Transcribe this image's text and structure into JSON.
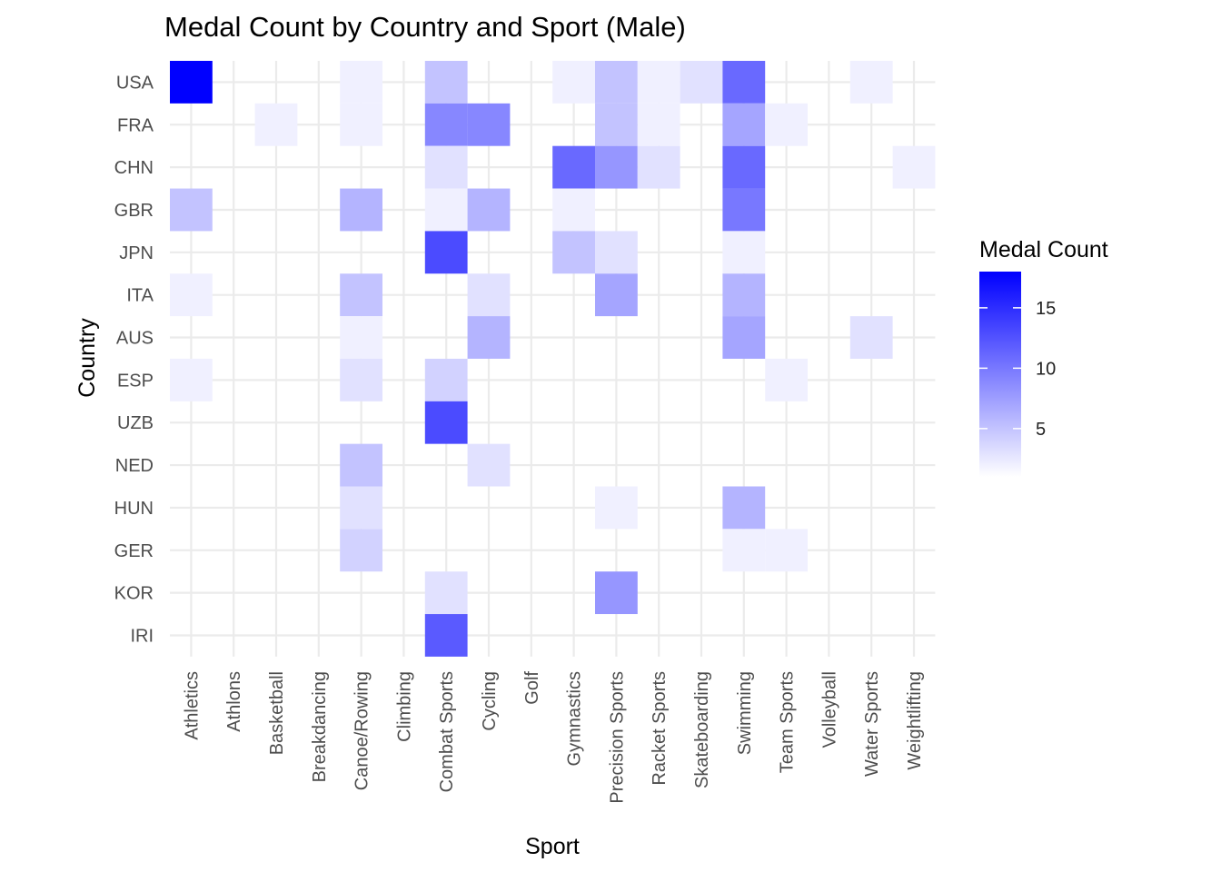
{
  "chart_data": {
    "type": "heatmap",
    "title": "Medal Count by Country and Sport (Male)",
    "xlabel": "Sport",
    "ylabel": "Country",
    "x_categories": [
      "Athletics",
      "Athlons",
      "Basketball",
      "Breakdancing",
      "Canoe/Rowing",
      "Climbing",
      "Combat Sports",
      "Cycling",
      "Golf",
      "Gymnastics",
      "Precision Sports",
      "Racket Sports",
      "Skateboarding",
      "Swimming",
      "Team Sports",
      "Volleyball",
      "Water Sports",
      "Weightlifting"
    ],
    "y_categories": [
      "USA",
      "FRA",
      "CHN",
      "GBR",
      "JPN",
      "ITA",
      "AUS",
      "ESP",
      "UZB",
      "NED",
      "HUN",
      "GER",
      "KOR",
      "IRI"
    ],
    "cells": [
      {
        "country": "USA",
        "sport": "Athletics",
        "value": 18
      },
      {
        "country": "USA",
        "sport": "Canoe/Rowing",
        "value": 2
      },
      {
        "country": "USA",
        "sport": "Combat Sports",
        "value": 5
      },
      {
        "country": "USA",
        "sport": "Gymnastics",
        "value": 2
      },
      {
        "country": "USA",
        "sport": "Precision Sports",
        "value": 5
      },
      {
        "country": "USA",
        "sport": "Racket Sports",
        "value": 2
      },
      {
        "country": "USA",
        "sport": "Skateboarding",
        "value": 3
      },
      {
        "country": "USA",
        "sport": "Swimming",
        "value": 11
      },
      {
        "country": "USA",
        "sport": "Water Sports",
        "value": 2
      },
      {
        "country": "FRA",
        "sport": "Basketball",
        "value": 2
      },
      {
        "country": "FRA",
        "sport": "Canoe/Rowing",
        "value": 2
      },
      {
        "country": "FRA",
        "sport": "Combat Sports",
        "value": 9
      },
      {
        "country": "FRA",
        "sport": "Cycling",
        "value": 9
      },
      {
        "country": "FRA",
        "sport": "Precision Sports",
        "value": 5
      },
      {
        "country": "FRA",
        "sport": "Racket Sports",
        "value": 2
      },
      {
        "country": "FRA",
        "sport": "Swimming",
        "value": 7
      },
      {
        "country": "FRA",
        "sport": "Team Sports",
        "value": 2
      },
      {
        "country": "CHN",
        "sport": "Combat Sports",
        "value": 3
      },
      {
        "country": "CHN",
        "sport": "Gymnastics",
        "value": 11
      },
      {
        "country": "CHN",
        "sport": "Precision Sports",
        "value": 8
      },
      {
        "country": "CHN",
        "sport": "Racket Sports",
        "value": 3
      },
      {
        "country": "CHN",
        "sport": "Swimming",
        "value": 11
      },
      {
        "country": "CHN",
        "sport": "Weightlifting",
        "value": 2
      },
      {
        "country": "GBR",
        "sport": "Athletics",
        "value": 5
      },
      {
        "country": "GBR",
        "sport": "Canoe/Rowing",
        "value": 6
      },
      {
        "country": "GBR",
        "sport": "Combat Sports",
        "value": 2
      },
      {
        "country": "GBR",
        "sport": "Cycling",
        "value": 6
      },
      {
        "country": "GBR",
        "sport": "Gymnastics",
        "value": 2
      },
      {
        "country": "GBR",
        "sport": "Swimming",
        "value": 10
      },
      {
        "country": "JPN",
        "sport": "Combat Sports",
        "value": 13
      },
      {
        "country": "JPN",
        "sport": "Gymnastics",
        "value": 5
      },
      {
        "country": "JPN",
        "sport": "Precision Sports",
        "value": 3
      },
      {
        "country": "JPN",
        "sport": "Swimming",
        "value": 2
      },
      {
        "country": "ITA",
        "sport": "Athletics",
        "value": 2
      },
      {
        "country": "ITA",
        "sport": "Canoe/Rowing",
        "value": 5
      },
      {
        "country": "ITA",
        "sport": "Cycling",
        "value": 3
      },
      {
        "country": "ITA",
        "sport": "Precision Sports",
        "value": 7
      },
      {
        "country": "ITA",
        "sport": "Swimming",
        "value": 6
      },
      {
        "country": "AUS",
        "sport": "Canoe/Rowing",
        "value": 2
      },
      {
        "country": "AUS",
        "sport": "Cycling",
        "value": 6
      },
      {
        "country": "AUS",
        "sport": "Swimming",
        "value": 7
      },
      {
        "country": "AUS",
        "sport": "Water Sports",
        "value": 3
      },
      {
        "country": "ESP",
        "sport": "Athletics",
        "value": 2
      },
      {
        "country": "ESP",
        "sport": "Canoe/Rowing",
        "value": 3
      },
      {
        "country": "ESP",
        "sport": "Combat Sports",
        "value": 4
      },
      {
        "country": "ESP",
        "sport": "Team Sports",
        "value": 2
      },
      {
        "country": "UZB",
        "sport": "Combat Sports",
        "value": 13
      },
      {
        "country": "NED",
        "sport": "Canoe/Rowing",
        "value": 5
      },
      {
        "country": "NED",
        "sport": "Cycling",
        "value": 3
      },
      {
        "country": "HUN",
        "sport": "Canoe/Rowing",
        "value": 3
      },
      {
        "country": "HUN",
        "sport": "Precision Sports",
        "value": 2
      },
      {
        "country": "HUN",
        "sport": "Swimming",
        "value": 6
      },
      {
        "country": "GER",
        "sport": "Canoe/Rowing",
        "value": 4
      },
      {
        "country": "GER",
        "sport": "Swimming",
        "value": 2
      },
      {
        "country": "GER",
        "sport": "Team Sports",
        "value": 2
      },
      {
        "country": "KOR",
        "sport": "Combat Sports",
        "value": 3
      },
      {
        "country": "KOR",
        "sport": "Precision Sports",
        "value": 8
      },
      {
        "country": "IRI",
        "sport": "Combat Sports",
        "value": 12
      }
    ],
    "legend": {
      "title": "Medal Count",
      "ticks": [
        5,
        10,
        15
      ],
      "min": 1,
      "max": 18,
      "low_color": "#ffffff",
      "high_color": "#0000ff",
      "placement": "right"
    },
    "grid": true
  }
}
